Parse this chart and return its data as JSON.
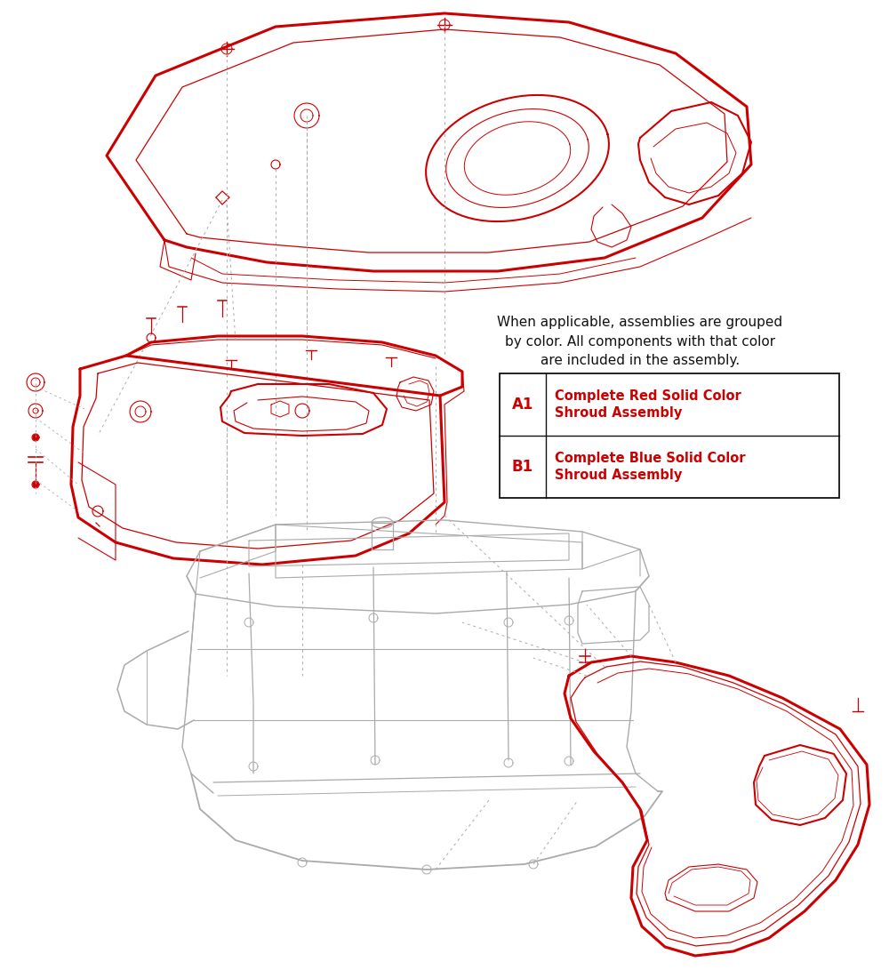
{
  "background_color": "#ffffff",
  "line_color": "#cc0000",
  "gray_color": "#aaaaaa",
  "black": "#111111",
  "legend_header": "When applicable, assemblies are grouped\nby color. All components with that color\nare included in the assembly.",
  "row_a1_code": "A1",
  "row_a1_desc": "Complete Red Solid Color\nShroud Assembly",
  "row_b1_code": "B1",
  "row_b1_desc": "Complete Blue Solid Color\nShroud Assembly",
  "figsize": [
    10.0,
    11.0
  ],
  "dpi": 100
}
